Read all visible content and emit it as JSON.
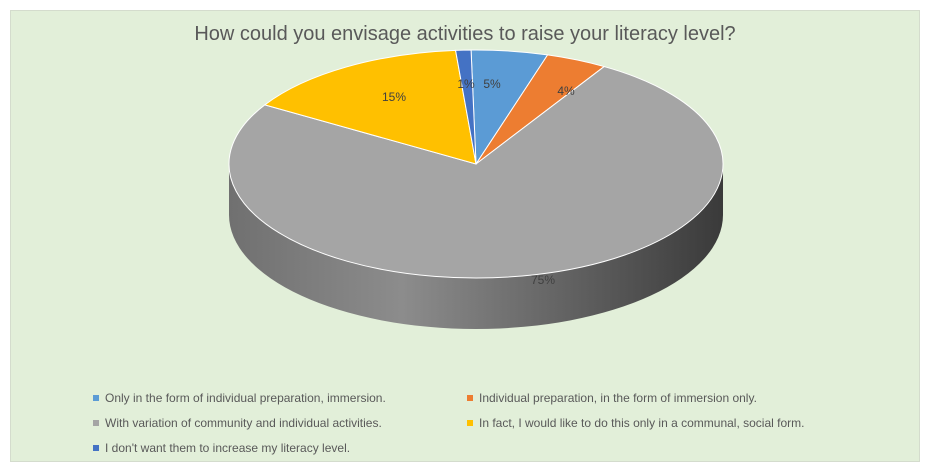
{
  "chart_data": {
    "type": "pie",
    "variant": "3d",
    "title": "How could you envisage activities to raise your literacy level?",
    "categories": [
      "Only in the form of individual preparation, immersion.",
      "Individual preparation, in the form of immersion only.",
      "With variation of community and individual activities.",
      "In fact, I would like to do this only in a communal, social form.",
      "I don't want them to increase my literacy level."
    ],
    "values": [
      5,
      4,
      75,
      15,
      1
    ],
    "data_labels": [
      "5%",
      "4%",
      "75%",
      "15%",
      "1%"
    ],
    "colors": [
      "#5b9bd5",
      "#ed7d31",
      "#a5a5a5",
      "#ffc000",
      "#4472c4"
    ],
    "legend_position": "bottom",
    "background": "#e2efd9"
  }
}
